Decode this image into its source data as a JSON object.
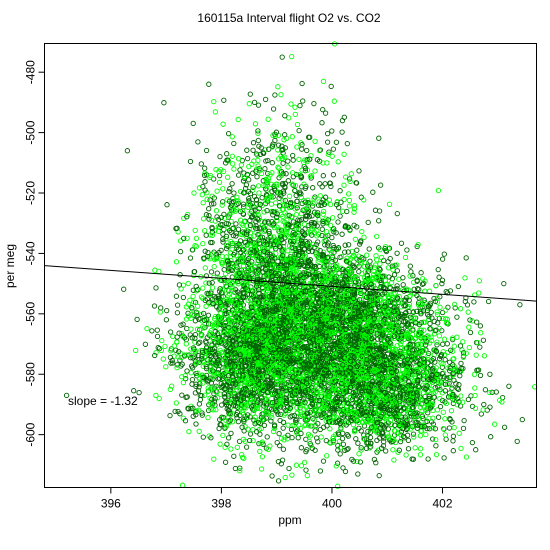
{
  "chart_data": {
    "type": "scatter",
    "title": "160115a   Interval flight O2 vs. CO2",
    "xlabel": "ppm",
    "ylabel": "per meg",
    "xlim": [
      394.8,
      403.7
    ],
    "ylim": [
      -617.5,
      -470.5
    ],
    "x_ticks": [
      396,
      398,
      400,
      402
    ],
    "y_ticks": [
      -480,
      -500,
      -520,
      -540,
      -560,
      -580,
      -600
    ],
    "grid": false,
    "legend": "none",
    "series": [
      {
        "marker": "open-circle",
        "colors": [
          "#006400",
          "#00ff00"
        ],
        "clusters": [
          {
            "cx": 399.0,
            "cy": -550,
            "sx": 0.75,
            "sy": 24,
            "n": 2600
          },
          {
            "cx": 400.3,
            "cy": -562,
            "sx": 0.85,
            "sy": 10,
            "n": 2000
          },
          {
            "cx": 400.8,
            "cy": -585,
            "sx": 0.8,
            "sy": 10,
            "n": 1800
          },
          {
            "cx": 398.6,
            "cy": -575,
            "sx": 0.7,
            "sy": 11,
            "n": 1500
          }
        ],
        "outliers": [
          {
            "x": 399.1,
            "y": -475
          },
          {
            "x": 398.8,
            "y": -489
          },
          {
            "x": 398.6,
            "y": -490
          },
          {
            "x": 395.2,
            "y": -587
          },
          {
            "x": 396.3,
            "y": -506
          },
          {
            "x": 403.4,
            "y": -557
          },
          {
            "x": 403.2,
            "y": -584
          },
          {
            "x": 400.2,
            "y": -611
          },
          {
            "x": 402.6,
            "y": -605
          }
        ]
      }
    ],
    "fit_line": {
      "slope": -1.32,
      "intercept": -550.9,
      "x0": 400.0,
      "label": "slope = -1.32"
    }
  }
}
